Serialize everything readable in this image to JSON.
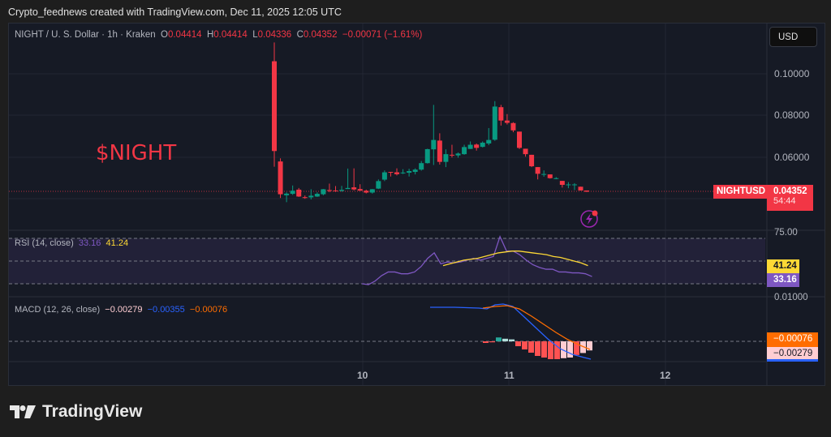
{
  "header": {
    "attribution": "Crypto_feednews created with TradingView.com, Dec 11, 2025 12:05 UTC"
  },
  "symbol_legend": {
    "symbol": "NIGHT / U. S. Dollar · 1h · Kraken",
    "open_label": "O",
    "open": "0.04414",
    "high_label": "H",
    "high": "0.04414",
    "low_label": "L",
    "low": "0.04336",
    "close_label": "C",
    "close": "0.04352",
    "change": "−0.00071 (−1.61%)"
  },
  "currency_button": "USD",
  "overlay_title": "$NIGHT",
  "price_axis": {
    "ticks": [
      "0.10000",
      "0.08000",
      "0.06000"
    ],
    "last_price": "0.04352",
    "countdown": "54:44",
    "symbol_tag": "NIGHTUSD"
  },
  "rsi": {
    "label": "RSI (14, close)",
    "value": "33.16",
    "ma_value": "41.24",
    "ticks": [
      "75.00",
      "50.00",
      "25.00"
    ]
  },
  "macd": {
    "label": "MACD (12, 26, close)",
    "histogram": "−0.00279",
    "macd": "−0.00355",
    "signal": "−0.00076",
    "top_tick": "0.01000",
    "tag_signal": "−0.00076",
    "tag_hist": "−0.00279"
  },
  "time_axis": {
    "ticks": [
      "10",
      "11",
      "12"
    ]
  },
  "brand": {
    "name": "TradingView"
  },
  "colors": {
    "up": "#089981",
    "down": "#f23645",
    "rsi_line": "#7e57c2",
    "rsi_ma": "#fdd835",
    "macd_line": "#2962ff",
    "signal_line": "#ff6d00",
    "background": "#161a25"
  },
  "chart_data": {
    "type": "candlestick",
    "title": "NIGHT / U. S. Dollar · 1h · Kraken",
    "ylabel": "USD",
    "ylim": [
      0.028,
      0.118
    ],
    "x_ticks": [
      "10",
      "11",
      "12"
    ],
    "current_price": 0.04352,
    "candles": [
      {
        "o": 0.106,
        "h": 0.115,
        "l": 0.0555,
        "c": 0.063
      },
      {
        "o": 0.058,
        "h": 0.0595,
        "l": 0.0405,
        "c": 0.0423
      },
      {
        "o": 0.0418,
        "h": 0.0432,
        "l": 0.0385,
        "c": 0.0426
      },
      {
        "o": 0.0425,
        "h": 0.0465,
        "l": 0.042,
        "c": 0.044
      },
      {
        "o": 0.0445,
        "h": 0.0453,
        "l": 0.041,
        "c": 0.0412
      },
      {
        "o": 0.0409,
        "h": 0.0417,
        "l": 0.0401,
        "c": 0.0405
      },
      {
        "o": 0.0408,
        "h": 0.0447,
        "l": 0.0398,
        "c": 0.0416
      },
      {
        "o": 0.0412,
        "h": 0.0432,
        "l": 0.041,
        "c": 0.0425
      },
      {
        "o": 0.0423,
        "h": 0.0448,
        "l": 0.0418,
        "c": 0.0447
      },
      {
        "o": 0.0443,
        "h": 0.0474,
        "l": 0.0433,
        "c": 0.0441
      },
      {
        "o": 0.0441,
        "h": 0.0462,
        "l": 0.0434,
        "c": 0.0438
      },
      {
        "o": 0.0439,
        "h": 0.0463,
        "l": 0.0435,
        "c": 0.0444
      },
      {
        "o": 0.0448,
        "h": 0.0546,
        "l": 0.0448,
        "c": 0.0453
      },
      {
        "o": 0.0456,
        "h": 0.0547,
        "l": 0.0441,
        "c": 0.0446
      },
      {
        "o": 0.0448,
        "h": 0.0471,
        "l": 0.044,
        "c": 0.044
      },
      {
        "o": 0.044,
        "h": 0.0445,
        "l": 0.0427,
        "c": 0.0431
      },
      {
        "o": 0.0431,
        "h": 0.0448,
        "l": 0.0426,
        "c": 0.0447
      },
      {
        "o": 0.045,
        "h": 0.0494,
        "l": 0.0448,
        "c": 0.0486
      },
      {
        "o": 0.0493,
        "h": 0.0537,
        "l": 0.0486,
        "c": 0.0528
      },
      {
        "o": 0.053,
        "h": 0.053,
        "l": 0.0508,
        "c": 0.0528
      },
      {
        "o": 0.0528,
        "h": 0.0547,
        "l": 0.0513,
        "c": 0.0519
      },
      {
        "o": 0.0523,
        "h": 0.0543,
        "l": 0.052,
        "c": 0.0527
      },
      {
        "o": 0.0526,
        "h": 0.0545,
        "l": 0.0508,
        "c": 0.0534
      },
      {
        "o": 0.053,
        "h": 0.0547,
        "l": 0.0518,
        "c": 0.0541
      },
      {
        "o": 0.0541,
        "h": 0.0582,
        "l": 0.0536,
        "c": 0.0572
      },
      {
        "o": 0.0572,
        "h": 0.0641,
        "l": 0.057,
        "c": 0.0639
      },
      {
        "o": 0.0638,
        "h": 0.0851,
        "l": 0.0563,
        "c": 0.0683
      },
      {
        "o": 0.068,
        "h": 0.0715,
        "l": 0.0565,
        "c": 0.0578
      },
      {
        "o": 0.0578,
        "h": 0.0638,
        "l": 0.0553,
        "c": 0.0615
      },
      {
        "o": 0.0612,
        "h": 0.066,
        "l": 0.0599,
        "c": 0.0609
      },
      {
        "o": 0.0609,
        "h": 0.0623,
        "l": 0.0598,
        "c": 0.0618
      },
      {
        "o": 0.0615,
        "h": 0.066,
        "l": 0.0612,
        "c": 0.0649
      },
      {
        "o": 0.064,
        "h": 0.0676,
        "l": 0.064,
        "c": 0.066
      },
      {
        "o": 0.0661,
        "h": 0.0666,
        "l": 0.0632,
        "c": 0.0645
      },
      {
        "o": 0.065,
        "h": 0.0676,
        "l": 0.0647,
        "c": 0.067
      },
      {
        "o": 0.0666,
        "h": 0.074,
        "l": 0.0658,
        "c": 0.0683
      },
      {
        "o": 0.0684,
        "h": 0.0869,
        "l": 0.0679,
        "c": 0.0843
      },
      {
        "o": 0.084,
        "h": 0.0851,
        "l": 0.0752,
        "c": 0.0776
      },
      {
        "o": 0.0776,
        "h": 0.0807,
        "l": 0.0757,
        "c": 0.0765
      },
      {
        "o": 0.0764,
        "h": 0.0768,
        "l": 0.072,
        "c": 0.0729
      },
      {
        "o": 0.0723,
        "h": 0.0723,
        "l": 0.064,
        "c": 0.0645
      },
      {
        "o": 0.0641,
        "h": 0.0641,
        "l": 0.0603,
        "c": 0.0615
      },
      {
        "o": 0.0612,
        "h": 0.0612,
        "l": 0.0553,
        "c": 0.0557
      },
      {
        "o": 0.0553,
        "h": 0.0553,
        "l": 0.0494,
        "c": 0.0521
      },
      {
        "o": 0.052,
        "h": 0.0537,
        "l": 0.0507,
        "c": 0.052
      },
      {
        "o": 0.0518,
        "h": 0.0518,
        "l": 0.0498,
        "c": 0.05
      },
      {
        "o": 0.0498,
        "h": 0.0505,
        "l": 0.0495,
        "c": 0.05
      },
      {
        "o": 0.0487,
        "h": 0.0487,
        "l": 0.0455,
        "c": 0.0468
      },
      {
        "o": 0.0468,
        "h": 0.0481,
        "l": 0.0452,
        "c": 0.047
      },
      {
        "o": 0.0467,
        "h": 0.0476,
        "l": 0.0443,
        "c": 0.047
      },
      {
        "o": 0.0459,
        "h": 0.0459,
        "l": 0.0441,
        "c": 0.0441
      },
      {
        "o": 0.0441,
        "h": 0.0441,
        "l": 0.0434,
        "c": 0.0435
      }
    ],
    "rsi_series": [
      25,
      24,
      28,
      34,
      38,
      38,
      36,
      36,
      38,
      44,
      53,
      59,
      47,
      49,
      48,
      49,
      51,
      53,
      51,
      53,
      55,
      77,
      61,
      61,
      57,
      51,
      46,
      43,
      41,
      41,
      38,
      38,
      37,
      37,
      36,
      33
    ],
    "rsi_ma_series": [
      45,
      47,
      49,
      51,
      52,
      53,
      55,
      57,
      59,
      60,
      61,
      61,
      60,
      59,
      58,
      57,
      55,
      54,
      52,
      50,
      48,
      45
    ],
    "macd_histogram": [
      -0.0005,
      -0.0003,
      0.0012,
      0.0008,
      0.0006,
      -0.0015,
      -0.0025,
      -0.0035,
      -0.0045,
      -0.005,
      -0.0055,
      -0.0055,
      -0.0052,
      -0.005,
      -0.0042,
      -0.0036,
      -0.0028
    ]
  }
}
